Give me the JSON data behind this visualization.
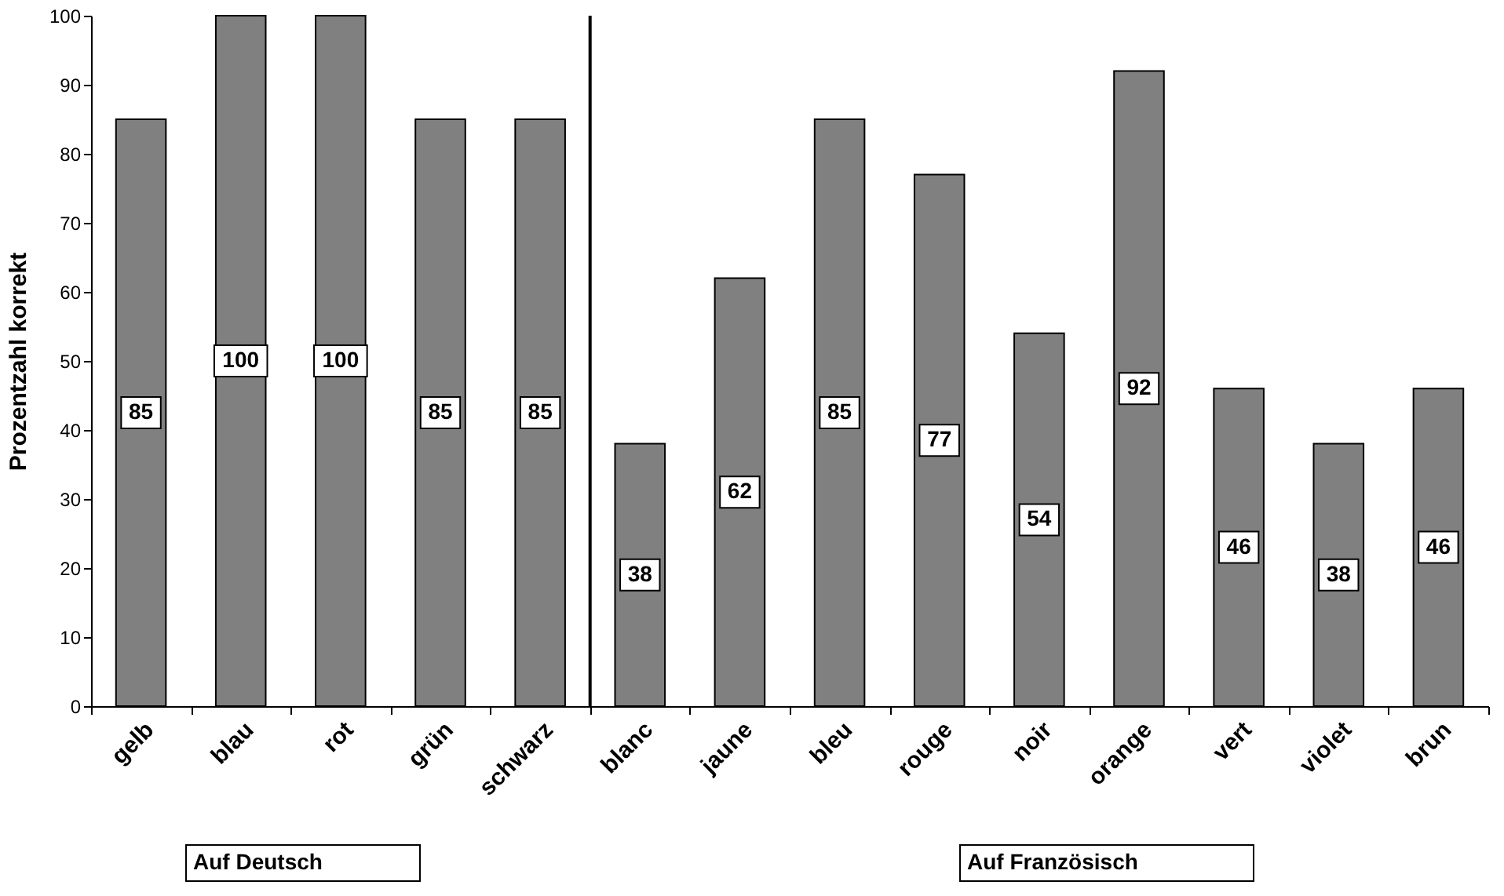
{
  "chart_data": {
    "type": "bar",
    "ylabel": "Prozentzahl korrekt",
    "categories": [
      "gelb",
      "blau",
      "rot",
      "grün",
      "schwarz",
      "blanc",
      "jaune",
      "bleu",
      "rouge",
      "noir",
      "orange",
      "vert",
      "violet",
      "brun"
    ],
    "values": [
      85,
      100,
      100,
      85,
      85,
      38,
      62,
      85,
      77,
      54,
      92,
      46,
      38,
      46
    ],
    "color": "#808080",
    "ylim": [
      0,
      100
    ],
    "yticks": [
      0,
      10,
      20,
      30,
      40,
      50,
      60,
      70,
      80,
      90,
      100
    ],
    "data_labels": true,
    "grid": false,
    "ref_lines": [
      {
        "axis": "x",
        "value": "blanc",
        "label": null
      }
    ],
    "annotations": [
      "Auf Deutsch",
      "Auf Französisch"
    ]
  }
}
